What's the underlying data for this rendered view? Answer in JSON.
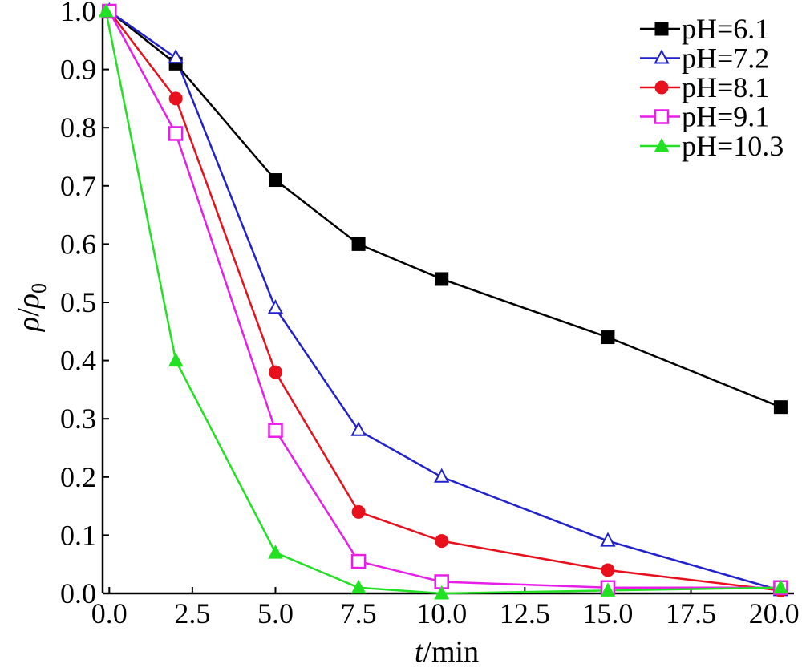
{
  "chart_data": {
    "type": "line",
    "xlabel": {
      "italic": "t",
      "rest": "/min"
    },
    "ylabel": {
      "rho": "ρ",
      "slash": "/",
      "rho0": "ρ",
      "sub": "0"
    },
    "xlim": [
      -0.2,
      20.6
    ],
    "ylim": [
      0.0,
      1.0
    ],
    "x_ticks": [
      0.0,
      2.5,
      5.0,
      7.5,
      10.0,
      12.5,
      15.0,
      17.5,
      20.0
    ],
    "x_tick_labels": [
      "0.0",
      "2.5",
      "5.0",
      "7.5",
      "10.0",
      "12.5",
      "15.0",
      "17.5",
      "20.0"
    ],
    "y_ticks": [
      0.0,
      0.1,
      0.2,
      0.3,
      0.4,
      0.5,
      0.6,
      0.7,
      0.8,
      0.9,
      1.0
    ],
    "y_tick_labels": [
      "0.0",
      "0.1",
      "0.2",
      "0.3",
      "0.4",
      "0.5",
      "0.6",
      "0.7",
      "0.8",
      "0.9",
      "1.0"
    ],
    "grid": false,
    "legend_position": "top-right",
    "series": [
      {
        "name": "pH=6.1",
        "color": "#000000",
        "marker": "square-filled",
        "x": [
          0,
          2,
          5,
          7.5,
          10,
          15,
          20.2
        ],
        "y": [
          1.0,
          0.91,
          0.71,
          0.6,
          0.54,
          0.44,
          0.32
        ]
      },
      {
        "name": "pH=7.2",
        "color": "#2222CC",
        "marker": "triangle-open",
        "x": [
          0,
          2,
          5,
          7.5,
          10,
          15,
          20.2
        ],
        "y": [
          1.0,
          0.92,
          0.49,
          0.28,
          0.2,
          0.09,
          0.005
        ]
      },
      {
        "name": "pH=8.1",
        "color": "#E8101C",
        "marker": "circle-filled",
        "x": [
          0,
          2,
          5,
          7.5,
          10,
          15,
          20.2
        ],
        "y": [
          1.0,
          0.85,
          0.38,
          0.14,
          0.09,
          0.04,
          0.005
        ]
      },
      {
        "name": "pH=9.1",
        "color": "#E81EE8",
        "marker": "square-open",
        "x": [
          0,
          2,
          5,
          7.5,
          10,
          15,
          20.2
        ],
        "y": [
          1.0,
          0.79,
          0.28,
          0.055,
          0.02,
          0.01,
          0.01
        ]
      },
      {
        "name": "pH=10.3",
        "color": "#22E022",
        "marker": "triangle-filled",
        "x": [
          -0.1,
          2,
          5,
          7.5,
          10,
          15,
          20.2
        ],
        "y": [
          1.0,
          0.4,
          0.07,
          0.01,
          0.0,
          0.005,
          0.01
        ]
      }
    ]
  }
}
